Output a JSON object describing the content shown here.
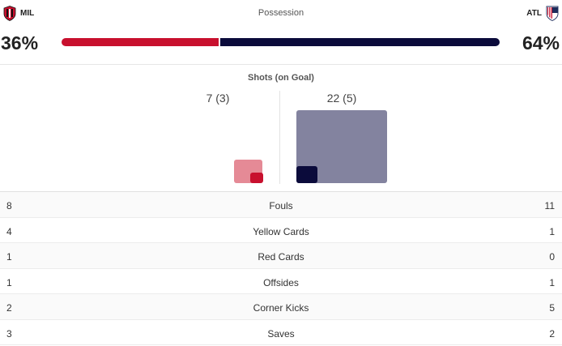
{
  "teams": {
    "home": {
      "abbr": "MIL",
      "crest_icon": "milan-crest-icon",
      "color": "#c8102e"
    },
    "away": {
      "abbr": "ATL",
      "crest_icon": "atletico-crest-icon",
      "color": "#0b0b3b"
    }
  },
  "possession": {
    "title": "Possession",
    "home_pct": "36%",
    "away_pct": "64%",
    "home_value": 36,
    "away_value": 64
  },
  "shots": {
    "title": "Shots (on Goal)",
    "home_label": "7 (3)",
    "away_label": "22 (5)",
    "home_total": 7,
    "home_on_goal": 3,
    "away_total": 22,
    "away_on_goal": 5
  },
  "stats": [
    {
      "label": "Fouls",
      "home": "8",
      "away": "11"
    },
    {
      "label": "Yellow Cards",
      "home": "4",
      "away": "1"
    },
    {
      "label": "Red Cards",
      "home": "1",
      "away": "0"
    },
    {
      "label": "Offsides",
      "home": "1",
      "away": "1"
    },
    {
      "label": "Corner Kicks",
      "home": "2",
      "away": "5"
    },
    {
      "label": "Saves",
      "home": "3",
      "away": "2"
    }
  ]
}
